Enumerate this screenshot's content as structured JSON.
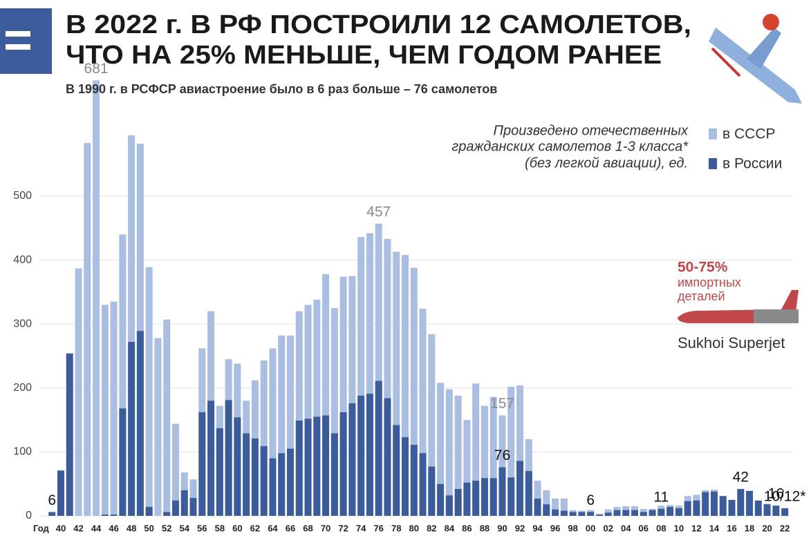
{
  "chart_data": {
    "type": "bar",
    "title": [
      "В 2022 г. В РФ ПОСТРОИЛИ 12 САМОЛЕТОВ,",
      "ЧТО НА 25% МЕНЬШЕ, ЧЕМ ГОДОМ РАНЕЕ"
    ],
    "subtitle": "В 1990 г. в РСФСР авиастроение было в 6 раз больше – 76 самолетов",
    "note": [
      "Произведено отечественных",
      "гражданских самолетов 1-3 класса*",
      "(без легкой авиации), ед."
    ],
    "x_label": "Год",
    "annotations": [
      "50-75%",
      "импортных",
      "деталей",
      "Sukhoi Superjet"
    ],
    "categories": [
      null,
      "40",
      null,
      "42",
      null,
      "44",
      null,
      "46",
      null,
      "48",
      null,
      "50",
      null,
      "52",
      null,
      "54",
      null,
      "56",
      null,
      "58",
      null,
      "60",
      null,
      "62",
      null,
      "64",
      null,
      "66",
      null,
      "68",
      null,
      "70",
      null,
      "72",
      null,
      "74",
      null,
      "76",
      null,
      "78",
      null,
      "80",
      null,
      "82",
      null,
      "84",
      null,
      "86",
      null,
      "88",
      null,
      "90",
      null,
      "92",
      null,
      "94",
      null,
      "96",
      null,
      "98",
      null,
      "00",
      null,
      "02",
      null,
      "04",
      null,
      "06",
      null,
      "08",
      null,
      "10",
      null,
      "12",
      null,
      "14",
      null,
      "16",
      null,
      "18",
      null,
      "20",
      null,
      "22"
    ],
    "series": [
      {
        "name": "в СССР",
        "color": "#a9bee0",
        "label_color": "#8a8a8a",
        "values": [
          null,
          null,
          null,
          387,
          583,
          681,
          330,
          335,
          440,
          595,
          582,
          389,
          278,
          307,
          144,
          68,
          57,
          262,
          320,
          172,
          245,
          238,
          180,
          212,
          243,
          262,
          282,
          282,
          320,
          330,
          338,
          378,
          325,
          374,
          375,
          436,
          442,
          457,
          433,
          413,
          408,
          388,
          324,
          284,
          208,
          198,
          188,
          150,
          207,
          172,
          186,
          157,
          202,
          204,
          120,
          55,
          40,
          27,
          27,
          9,
          8,
          9,
          3,
          10,
          14,
          15,
          15,
          11,
          11,
          16,
          17,
          16,
          31,
          33,
          40,
          41,
          null,
          null,
          null,
          null,
          null,
          19,
          null,
          null
        ],
        "value_labels": [
          null,
          null,
          null,
          null,
          null,
          "681",
          null,
          null,
          null,
          null,
          null,
          null,
          null,
          null,
          null,
          null,
          null,
          null,
          null,
          null,
          null,
          null,
          null,
          null,
          null,
          null,
          null,
          null,
          null,
          null,
          null,
          null,
          null,
          null,
          null,
          null,
          null,
          "457",
          null,
          null,
          null,
          null,
          null,
          null,
          null,
          null,
          null,
          null,
          null,
          null,
          null,
          "157",
          null,
          null,
          null,
          null,
          null,
          null,
          null,
          null,
          null,
          null,
          null,
          null,
          null,
          null,
          null,
          null,
          null,
          null,
          null,
          null,
          null,
          null,
          null,
          null,
          null,
          null,
          null,
          null,
          null,
          null,
          null,
          null
        ]
      },
      {
        "name": "в России",
        "color": "#3c5b9b",
        "label_color": "#111111",
        "values": [
          6,
          71,
          254,
          0,
          0,
          0,
          2,
          2,
          168,
          272,
          289,
          14,
          0,
          6,
          24,
          40,
          28,
          162,
          180,
          137,
          181,
          154,
          129,
          121,
          109,
          90,
          98,
          105,
          149,
          152,
          155,
          157,
          129,
          162,
          176,
          188,
          191,
          211,
          184,
          142,
          123,
          111,
          98,
          77,
          50,
          32,
          42,
          52,
          55,
          59,
          59,
          76,
          60,
          86,
          70,
          27,
          18,
          10,
          8,
          6,
          6,
          6,
          2,
          5,
          9,
          9,
          9,
          6,
          9,
          11,
          14,
          12,
          23,
          24,
          37,
          38,
          31,
          25,
          42,
          39,
          24,
          18,
          16,
          12
        ],
        "value_labels": [
          "6",
          null,
          null,
          null,
          null,
          null,
          null,
          null,
          null,
          null,
          null,
          null,
          null,
          null,
          null,
          null,
          null,
          null,
          null,
          null,
          null,
          null,
          null,
          null,
          null,
          null,
          null,
          null,
          null,
          null,
          null,
          null,
          null,
          null,
          null,
          null,
          null,
          null,
          null,
          null,
          null,
          null,
          null,
          null,
          null,
          null,
          null,
          null,
          null,
          null,
          null,
          "76",
          null,
          null,
          null,
          null,
          null,
          null,
          null,
          null,
          null,
          "6",
          null,
          null,
          null,
          null,
          null,
          null,
          null,
          "11",
          null,
          null,
          null,
          null,
          null,
          null,
          null,
          null,
          "42",
          null,
          null,
          null,
          "16",
          "10/12*"
        ]
      }
    ],
    "ylim": [
      0,
      700
    ],
    "yticks": [
      0,
      100,
      200,
      300,
      400,
      500
    ],
    "grid": true
  }
}
